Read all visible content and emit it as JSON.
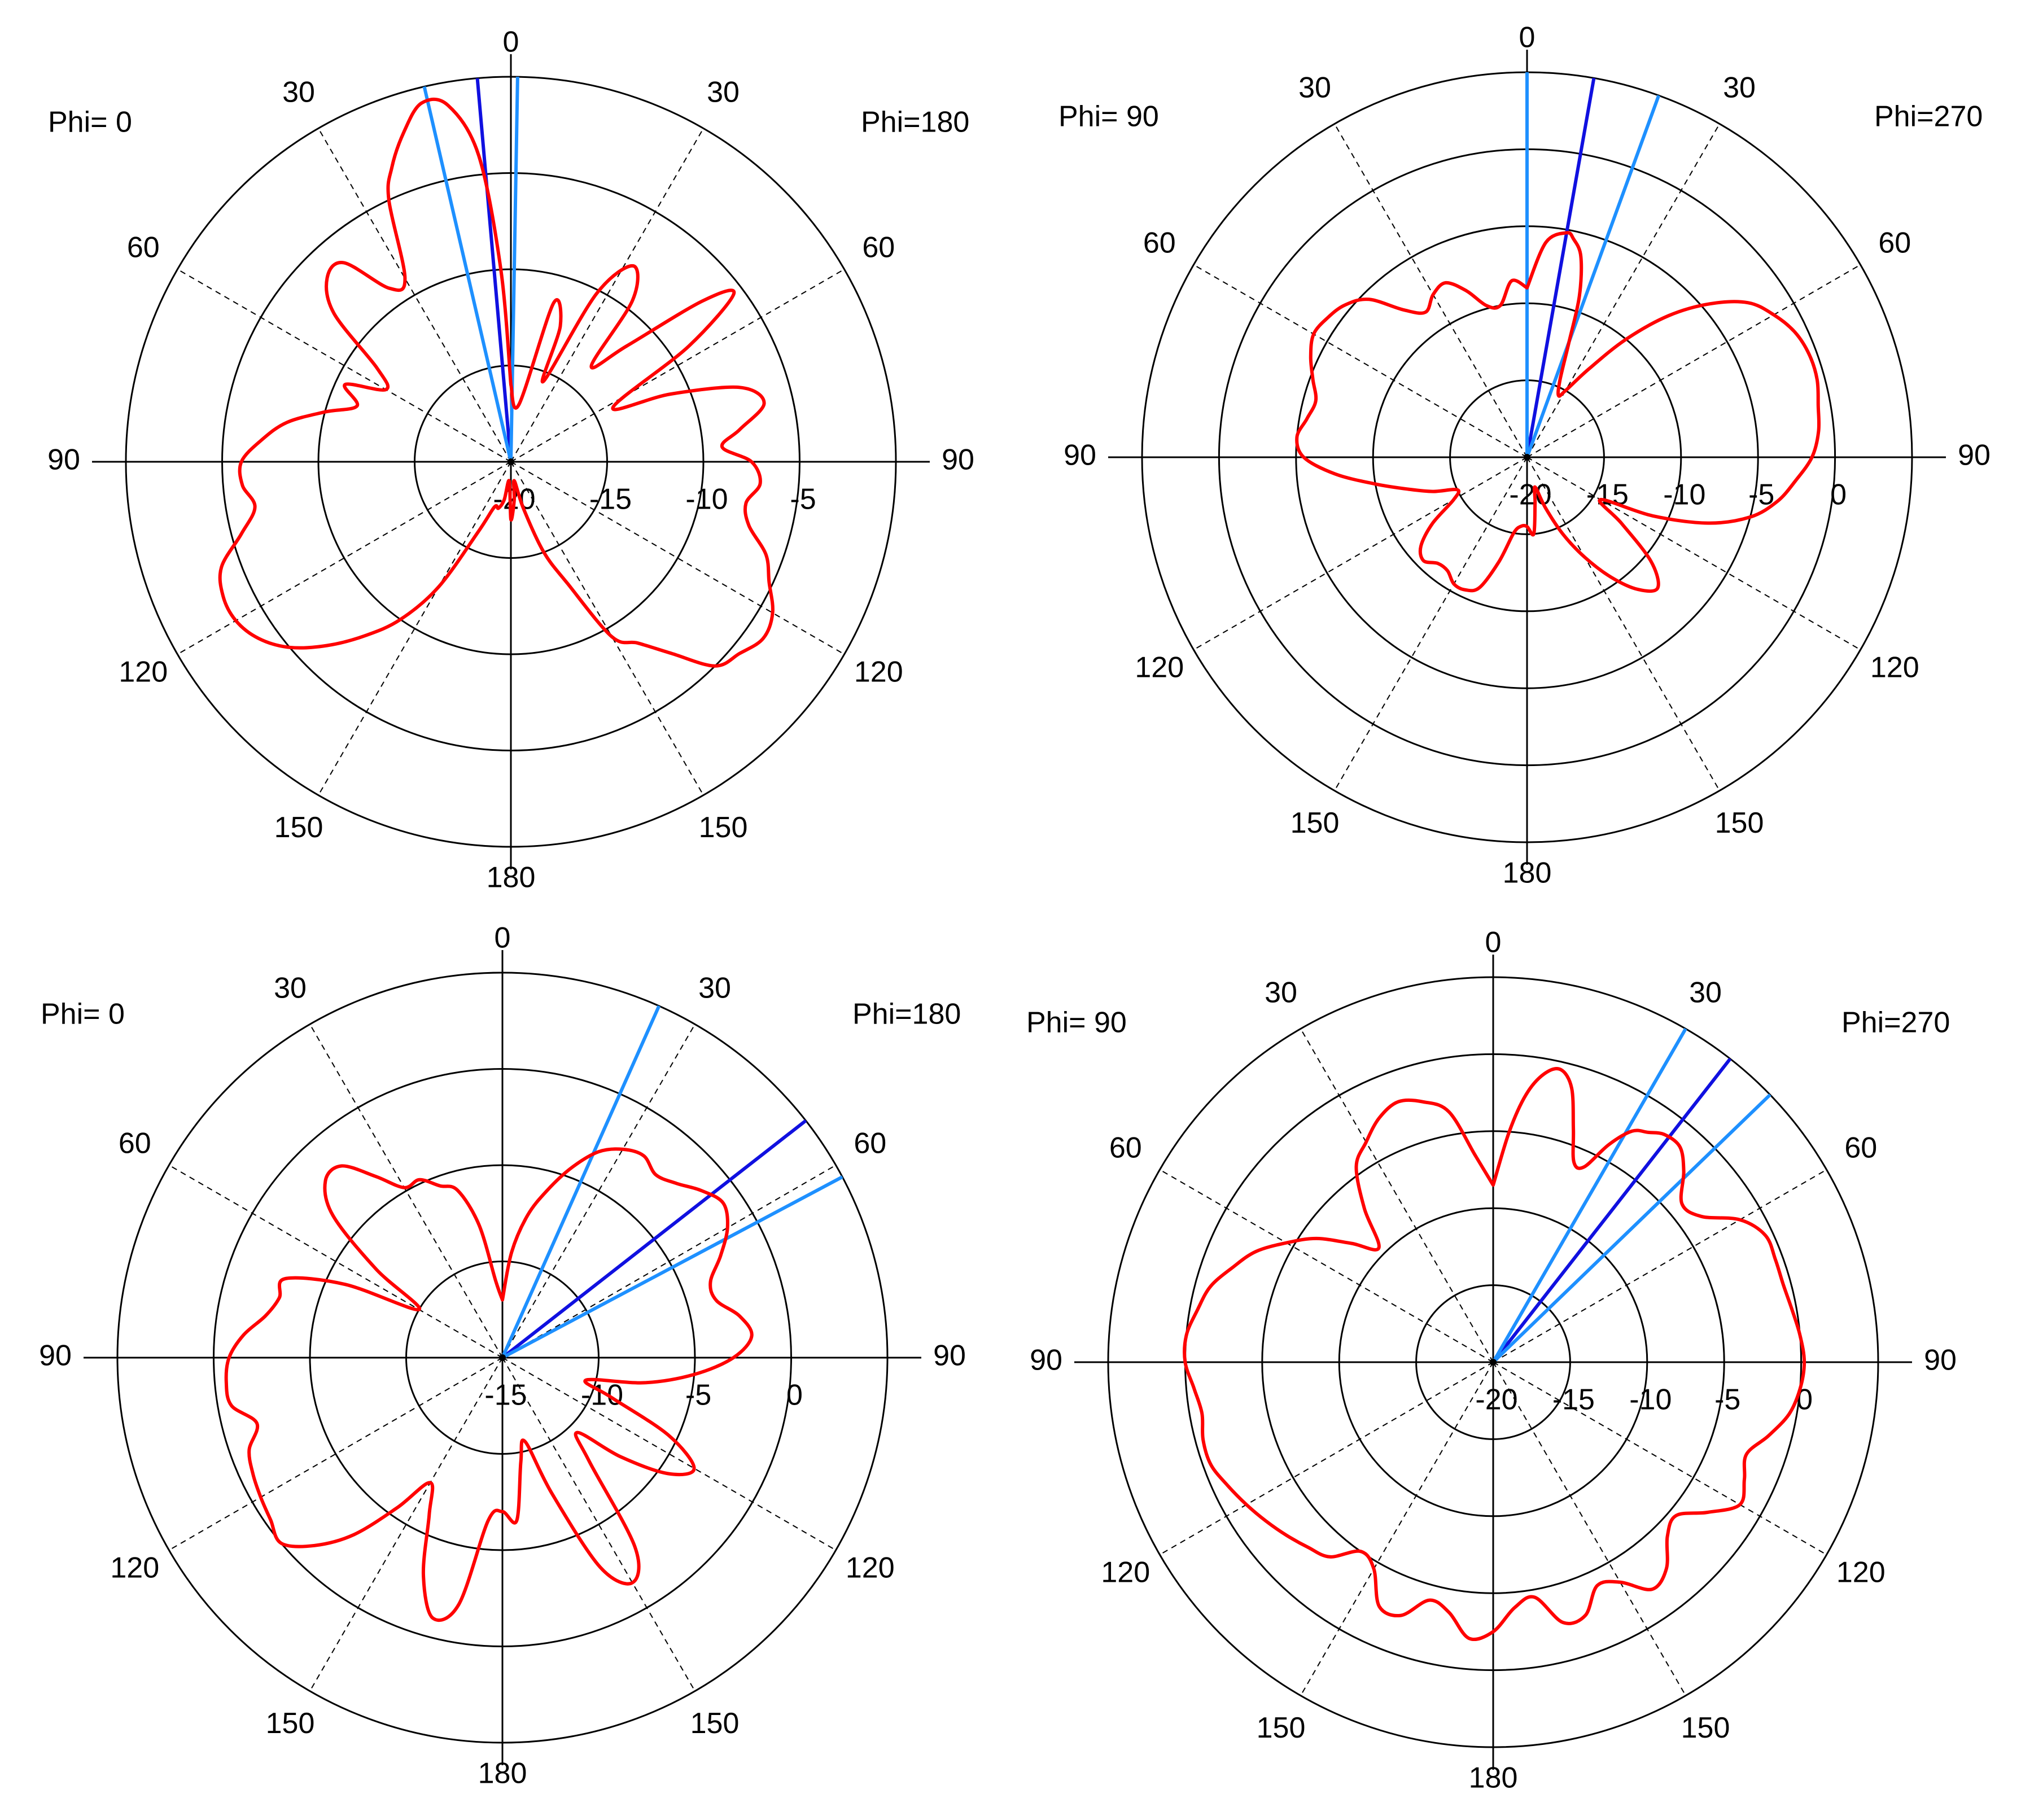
{
  "colors": {
    "pattern": "#ff0000",
    "beam_center": "#1010e0",
    "beam_edge": "#1e90ff",
    "grid": "#000000"
  },
  "chart_data": [
    {
      "type": "polar-line",
      "phi_left_label": "Phi=  0",
      "phi_right_label": "Phi=180",
      "angle_labels": [
        "0",
        "30",
        "60",
        "90",
        "120",
        "150",
        "180",
        "150",
        "120",
        "90",
        "60",
        "30"
      ],
      "ring_values": [
        -20,
        -15,
        -10,
        -5
      ],
      "radial_labels": [
        "-20",
        "-15",
        "-10",
        "-5"
      ],
      "rlim": [
        -20,
        0
      ],
      "beam_lines": [
        {
          "role": "center",
          "angle": -5
        },
        {
          "role": "edge",
          "angle": 1
        },
        {
          "role": "edge",
          "angle": -13
        }
      ],
      "series": [
        {
          "theta": [
            0,
            8,
            15,
            20,
            22,
            27,
            32,
            37,
            40,
            45,
            50,
            53,
            57,
            62,
            67,
            72,
            77,
            82,
            86,
            90,
            95,
            100,
            105,
            110,
            115,
            120,
            125,
            130,
            135,
            140,
            145,
            150,
            155,
            160,
            165,
            170,
            175,
            180,
            185,
            190,
            195,
            200,
            205,
            210,
            215,
            220,
            225,
            230,
            235,
            240,
            245,
            250,
            255,
            260,
            265,
            270,
            275,
            280,
            285,
            290,
            295,
            300,
            305,
            310,
            315,
            320,
            325,
            330,
            335,
            338,
            342,
            346,
            350,
            354,
            357,
            360
          ],
          "r": [
            -16.0,
            -17.0,
            -11.5,
            -12.5,
            -15.5,
            -10.2,
            -8.0,
            -9.5,
            -13.5,
            -11.5,
            -7.0,
            -5.5,
            -9.0,
            -14.0,
            -11.0,
            -7.5,
            -6.5,
            -8.0,
            -9.0,
            -7.5,
            -7.0,
            -7.6,
            -7.2,
            -5.9,
            -5.2,
            -4.3,
            -4.0,
            -4.5,
            -5.0,
            -7.0,
            -8.5,
            -9.5,
            -13.0,
            -15.0,
            -17.5,
            -19.0,
            -18.0,
            -17.0,
            -19.0,
            -18.0,
            -17.5,
            -17.5,
            -16.0,
            -12.5,
            -10.0,
            -8.2,
            -6.5,
            -5.0,
            -4.0,
            -3.5,
            -3.5,
            -4.0,
            -5.5,
            -6.5,
            -6.0,
            -6.0,
            -7.0,
            -8.2,
            -10.0,
            -11.5,
            -10.5,
            -12.5,
            -11.5,
            -8.0,
            -6.5,
            -6.5,
            -9.0,
            -9.0,
            -5.0,
            -3.5,
            -2.0,
            -0.8,
            -1.2,
            -4.0,
            -10.0,
            -16.0
          ]
        }
      ]
    },
    {
      "type": "polar-line",
      "phi_left_label": "Phi= 90",
      "phi_right_label": "Phi=270",
      "angle_labels": [
        "0",
        "30",
        "60",
        "90",
        "120",
        "150",
        "180",
        "150",
        "120",
        "90",
        "60",
        "30"
      ],
      "ring_values": [
        -20,
        -15,
        -10,
        -5,
        0
      ],
      "radial_labels": [
        "-20",
        "-15",
        "-10",
        "-5",
        "0"
      ],
      "rlim": [
        -20,
        5
      ],
      "beam_lines": [
        {
          "role": "center",
          "angle": 10
        },
        {
          "role": "edge",
          "angle": 0
        },
        {
          "role": "edge",
          "angle": 20
        }
      ],
      "series": [
        {
          "theta": [
            0,
            5,
            10,
            12,
            15,
            18,
            20,
            23,
            27,
            30,
            35,
            40,
            45,
            50,
            55,
            60,
            65,
            70,
            75,
            80,
            85,
            90,
            95,
            100,
            105,
            110,
            115,
            120,
            125,
            130,
            135,
            140,
            145,
            150,
            155,
            160,
            165,
            170,
            175,
            180,
            185,
            190,
            195,
            200,
            205,
            210,
            215,
            220,
            225,
            230,
            235,
            240,
            245,
            250,
            255,
            260,
            265,
            270,
            275,
            280,
            285,
            290,
            295,
            300,
            305,
            310,
            315,
            320,
            325,
            330,
            335,
            340,
            345,
            350,
            355,
            360
          ],
          "r": [
            -9.0,
            -6.0,
            -5.2,
            -5.5,
            -6.5,
            -9.0,
            -12.0,
            -14.5,
            -15.5,
            -15.0,
            -13.0,
            -10.0,
            -7.0,
            -4.5,
            -2.5,
            -1.5,
            -0.8,
            -0.5,
            -0.5,
            -0.8,
            -1.0,
            -1.5,
            -2.5,
            -3.5,
            -5.0,
            -7.5,
            -11.0,
            -14.5,
            -12.5,
            -9.5,
            -8.0,
            -8.8,
            -10.5,
            -12.5,
            -14.5,
            -16.5,
            -18.0,
            -17.0,
            -15.0,
            -15.5,
            -15.5,
            -15.0,
            -13.0,
            -11.0,
            -10.5,
            -10.5,
            -11.0,
            -11.0,
            -10.5,
            -11.0,
            -12.5,
            -14.5,
            -15.0,
            -13.5,
            -12.0,
            -10.0,
            -7.5,
            -5.5,
            -5.0,
            -5.5,
            -5.8,
            -5.2,
            -4.5,
            -4.0,
            -4.2,
            -4.6,
            -5.5,
            -7.5,
            -8.5,
            -7.8,
            -7.5,
            -8.5,
            -9.8,
            -10.0,
            -8.5,
            -9.0
          ]
        }
      ]
    },
    {
      "type": "polar-line",
      "phi_left_label": "Phi=  0",
      "phi_right_label": "Phi=180",
      "angle_labels": [
        "0",
        "30",
        "60",
        "90",
        "120",
        "150",
        "180",
        "150",
        "120",
        "90",
        "60",
        "30"
      ],
      "ring_values": [
        -15,
        -10,
        -5,
        0
      ],
      "radial_labels": [
        "-15",
        "-10",
        "-5",
        "0"
      ],
      "rlim": [
        -15,
        5
      ],
      "beam_lines": [
        {
          "role": "center",
          "angle": 52
        },
        {
          "role": "edge",
          "angle": 24
        },
        {
          "role": "edge",
          "angle": 62
        }
      ],
      "series": [
        {
          "theta": [
            0,
            5,
            10,
            15,
            20,
            25,
            30,
            35,
            40,
            45,
            50,
            55,
            60,
            65,
            70,
            75,
            80,
            85,
            90,
            95,
            100,
            105,
            110,
            115,
            120,
            125,
            130,
            135,
            140,
            145,
            150,
            155,
            160,
            165,
            170,
            175,
            180,
            185,
            190,
            195,
            200,
            205,
            210,
            215,
            220,
            225,
            230,
            235,
            240,
            245,
            250,
            255,
            260,
            265,
            270,
            275,
            280,
            285,
            290,
            295,
            300,
            305,
            310,
            315,
            320,
            325,
            330,
            335,
            340,
            345,
            350,
            355,
            360
          ],
          "r": [
            -12.0,
            -9.5,
            -7.5,
            -6.0,
            -4.5,
            -3.2,
            -2.5,
            -2.2,
            -2.6,
            -2.2,
            -1.5,
            -1.0,
            -1.5,
            -2.5,
            -3.5,
            -3.5,
            -2.5,
            -2.0,
            -3.0,
            -5.0,
            -7.5,
            -10.5,
            -9.0,
            -5.5,
            -3.5,
            -4.5,
            -7.0,
            -9.5,
            -8.0,
            -3.0,
            -1.5,
            -3.0,
            -7.5,
            -10.5,
            -9.5,
            -6.5,
            -7.0,
            -6.5,
            -2.0,
            -1.0,
            -3.0,
            -6.0,
            -7.5,
            -5.5,
            -3.0,
            -1.2,
            0.0,
            -0.3,
            -0.5,
            -0.7,
            -1.0,
            -1.8,
            -0.7,
            -0.6,
            -0.8,
            -1.5,
            -2.5,
            -3.0,
            -3.0,
            -6.0,
            -10.0,
            -7.0,
            -3.5,
            -2.0,
            -2.0,
            -3.5,
            -4.8,
            -4.8,
            -5.5,
            -6.0,
            -8.0,
            -11.0,
            -12.0
          ]
        }
      ]
    },
    {
      "type": "polar-line",
      "phi_left_label": "Phi= 90",
      "phi_right_label": "Phi=270",
      "angle_labels": [
        "0",
        "30",
        "60",
        "90",
        "120",
        "150",
        "180",
        "150",
        "120",
        "90",
        "60",
        "30"
      ],
      "ring_values": [
        -20,
        -15,
        -10,
        -5,
        0
      ],
      "radial_labels": [
        "-20",
        "-15",
        "-10",
        "-5",
        "0"
      ],
      "rlim": [
        -20,
        5
      ],
      "beam_lines": [
        {
          "role": "center",
          "angle": 38
        },
        {
          "role": "edge",
          "angle": 30
        },
        {
          "role": "edge",
          "angle": 46
        }
      ],
      "series": [
        {
          "theta": [
            0,
            4,
            7,
            10,
            13,
            16,
            19,
            22,
            25,
            28,
            31,
            34,
            37,
            41,
            45,
            50,
            55,
            60,
            65,
            70,
            75,
            80,
            85,
            90,
            95,
            100,
            105,
            110,
            115,
            120,
            125,
            130,
            135,
            140,
            145,
            150,
            155,
            160,
            165,
            170,
            175,
            180,
            185,
            190,
            195,
            200,
            205,
            210,
            215,
            220,
            225,
            230,
            235,
            240,
            245,
            250,
            255,
            260,
            265,
            270,
            275,
            280,
            285,
            290,
            295,
            300,
            305,
            310,
            315,
            320,
            325,
            330,
            335,
            340,
            345,
            350,
            355,
            360
          ],
          "r": [
            -8.5,
            -5.0,
            -2.5,
            -1.0,
            -0.5,
            -1.5,
            -4.0,
            -6.0,
            -6.0,
            -4.0,
            -2.5,
            -2.0,
            -1.5,
            -1.5,
            -2.5,
            -4.0,
            -3.5,
            -1.5,
            -0.5,
            -0.5,
            -0.5,
            -0.3,
            0.0,
            0.2,
            0.0,
            -0.5,
            -1.5,
            -2.5,
            -2.0,
            -1.5,
            -3.0,
            -4.5,
            -4.0,
            -2.5,
            -2.0,
            -3.5,
            -4.0,
            -2.5,
            -2.5,
            -4.5,
            -4.0,
            -2.5,
            -2.0,
            -3.5,
            -4.0,
            -2.5,
            -2.5,
            -4.5,
            -5.0,
            -3.5,
            -3.0,
            -2.5,
            -2.0,
            -1.5,
            -1.0,
            -0.5,
            -0.5,
            -0.8,
            -0.5,
            0.0,
            0.0,
            -0.5,
            -1.0,
            -2.0,
            -3.0,
            -4.5,
            -6.0,
            -8.0,
            -9.5,
            -7.0,
            -4.5,
            -3.5,
            -2.5,
            -2.0,
            -2.5,
            -3.5,
            -6.5,
            -8.5
          ]
        }
      ]
    }
  ]
}
